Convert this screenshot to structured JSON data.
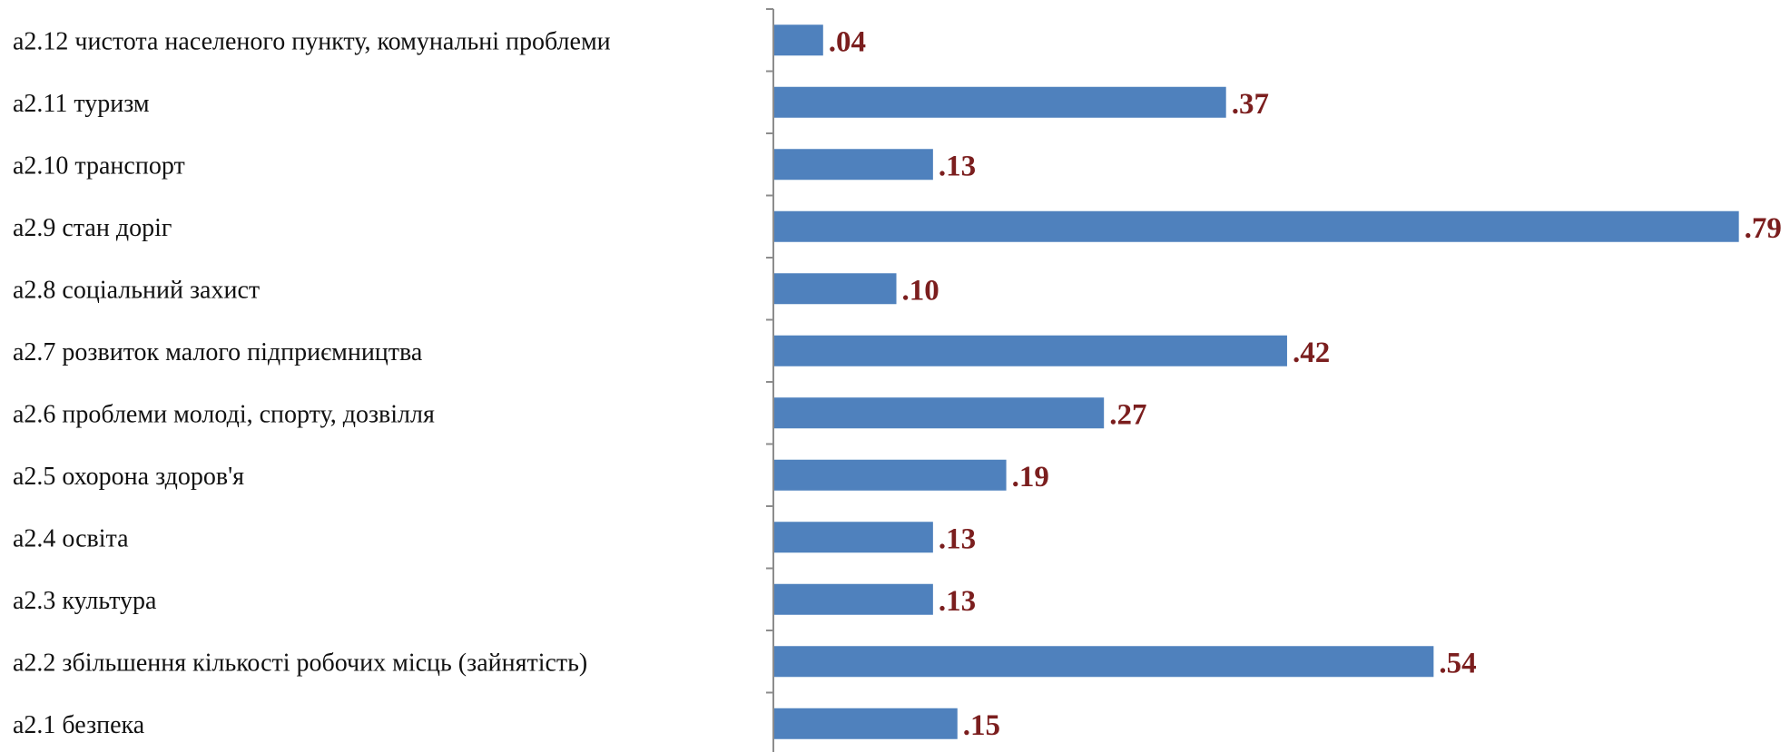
{
  "chart_data": {
    "type": "bar",
    "orientation": "horizontal",
    "categories": [
      "a2.12  чистота населеного пункту, комунальні проблеми",
      "a2.11 туризм",
      "a2.10  транспорт",
      "a2.9  стан доріг",
      "a2.8  соціальний захист",
      "a2.7  розвиток малого підприємництва",
      "a2.6  проблеми молоді, спорту, дозвілля",
      "a2.5 охорона здоров'я",
      "a2.4 освіта",
      "a2.3 культура",
      "a2.2 збільшення кількості робочих місць (зайнятість)",
      "a2.1 безпека"
    ],
    "values": [
      0.04,
      0.37,
      0.13,
      0.79,
      0.1,
      0.42,
      0.27,
      0.19,
      0.13,
      0.13,
      0.54,
      0.15
    ],
    "value_labels": [
      ".04",
      ".37",
      ".13",
      ".79",
      ".10",
      ".42",
      ".27",
      ".19",
      ".13",
      ".13",
      ".54",
      ".15"
    ],
    "xlim": [
      0,
      0.8
    ],
    "grid": false,
    "legend": "none",
    "bar_color": "#4f81bd",
    "label_color": "#7b1e1e"
  }
}
